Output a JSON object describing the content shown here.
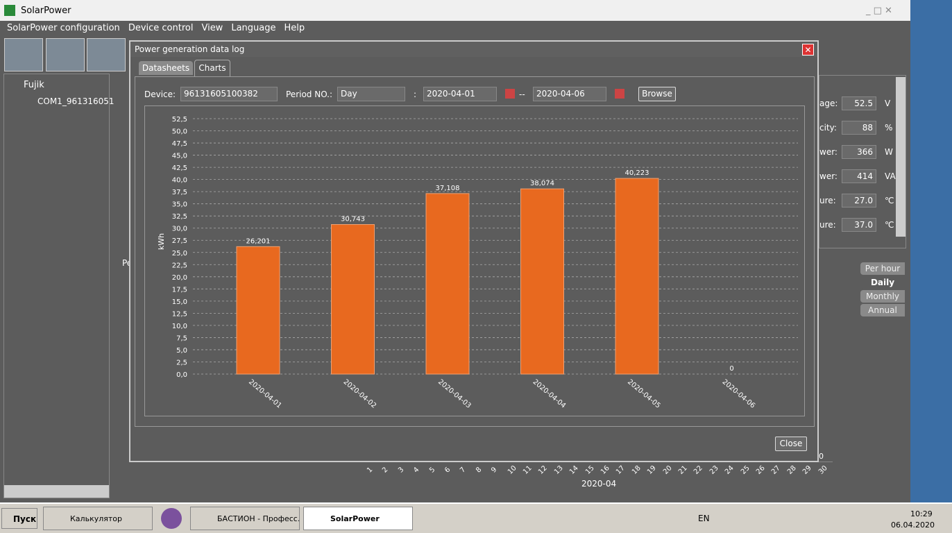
{
  "window": {
    "title": "SolarPower"
  },
  "menu": [
    "SolarPower configuration",
    "Device control",
    "View",
    "Language",
    "Help"
  ],
  "tree": {
    "root": "Fujik",
    "child": "COM1_961316051"
  },
  "status_panel": [
    {
      "label": "age:",
      "value": "52.5",
      "unit": "V"
    },
    {
      "label": "city:",
      "value": "88",
      "unit": "%"
    },
    {
      "label": "wer:",
      "value": "366",
      "unit": "W"
    },
    {
      "label": "wer:",
      "value": "414",
      "unit": "VA"
    },
    {
      "label": "ure:",
      "value": "27.0",
      "unit": "℃"
    },
    {
      "label": "ure:",
      "value": "37.0",
      "unit": "℃"
    }
  ],
  "side_tabs": [
    "Per hour",
    "Daily",
    "Monthly",
    "Annual"
  ],
  "background_chart": {
    "panel_label": "Pe",
    "corner_value": "0",
    "x_labels": [
      1,
      2,
      3,
      4,
      5,
      6,
      7,
      8,
      9,
      10,
      11,
      12,
      13,
      14,
      15,
      16,
      17,
      18,
      19,
      20,
      21,
      22,
      23,
      24,
      25,
      26,
      27,
      28,
      29,
      30
    ],
    "x_title": "2020-04"
  },
  "dialog": {
    "title": "Power generation data log",
    "tabs": [
      "Datasheets",
      "Charts"
    ],
    "device_label": "Device:",
    "device": "96131605100382",
    "period_label": "Period NO.:",
    "period": "Day",
    "colon": ":",
    "date_from": "2020-04-01",
    "dash": "--",
    "date_to": "2020-04-06",
    "browse": "Browse",
    "close": "Close"
  },
  "chart_data": {
    "type": "bar",
    "y_label": "kWh",
    "categories": [
      "2020-04-01",
      "2020-04-02",
      "2020-04-03",
      "2020-04-04",
      "2020-04-05",
      "2020-04-06"
    ],
    "values": [
      26.201,
      30.743,
      37.108,
      38.074,
      40.223,
      0
    ],
    "value_labels": [
      "26,201",
      "30,743",
      "37,108",
      "38,074",
      "40,223",
      "0"
    ],
    "color": "#e8691f",
    "ylim": [
      0,
      52.5
    ],
    "yticks": [
      {
        "value": 0,
        "label": "0,0"
      },
      {
        "value": 2.5,
        "label": "2,5"
      },
      {
        "value": 5,
        "label": "5,0"
      },
      {
        "value": 7.5,
        "label": "7,5"
      },
      {
        "value": 10,
        "label": "10,0"
      },
      {
        "value": 12.5,
        "label": "12,5"
      },
      {
        "value": 15,
        "label": "15,0"
      },
      {
        "value": 17.5,
        "label": "17,5"
      },
      {
        "value": 20,
        "label": "20,0"
      },
      {
        "value": 22.5,
        "label": "22,5"
      },
      {
        "value": 25,
        "label": "25,0"
      },
      {
        "value": 27.5,
        "label": "27,5"
      },
      {
        "value": 30,
        "label": "30,0"
      },
      {
        "value": 32.5,
        "label": "32,5"
      },
      {
        "value": 35,
        "label": "35,0"
      },
      {
        "value": 37.5,
        "label": "37,5"
      },
      {
        "value": 40,
        "label": "40,0"
      },
      {
        "value": 42.5,
        "label": "42,5"
      },
      {
        "value": 45,
        "label": "45,0"
      },
      {
        "value": 47.5,
        "label": "47,5"
      },
      {
        "value": 50,
        "label": "50,0"
      },
      {
        "value": 52.5,
        "label": "52,5"
      }
    ],
    "grid": true
  },
  "taskbar": {
    "start": "Пуск",
    "items": [
      "Калькулятор",
      "БАСТИОН - Професс...",
      "SolarPower"
    ],
    "lang": "EN",
    "time": "10:29",
    "date": "06.04.2020"
  }
}
